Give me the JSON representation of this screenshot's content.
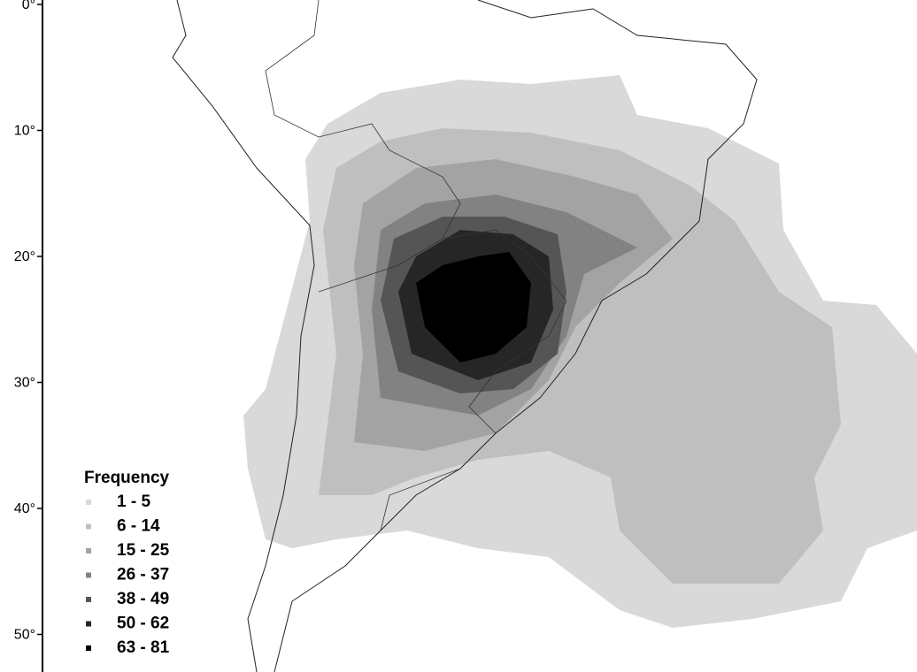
{
  "axis": {
    "ticks": [
      {
        "value": 0,
        "label": "0°"
      },
      {
        "value": 10,
        "label": "10°"
      },
      {
        "value": 20,
        "label": "20°"
      },
      {
        "value": 30,
        "label": "30°"
      },
      {
        "value": 40,
        "label": "40°"
      },
      {
        "value": 50,
        "label": "50°"
      }
    ]
  },
  "legend": {
    "title": "Frequency",
    "items": [
      {
        "label": "1 - 5",
        "color": "#d9d9d9"
      },
      {
        "label": "6 - 14",
        "color": "#bfbfbf"
      },
      {
        "label": "15 - 25",
        "color": "#a3a3a3"
      },
      {
        "label": "26 - 37",
        "color": "#828282"
      },
      {
        "label": "38 - 49",
        "color": "#555555"
      },
      {
        "label": "50 - 62",
        "color": "#262626"
      },
      {
        "label": "63 - 81",
        "color": "#000000"
      }
    ]
  }
}
